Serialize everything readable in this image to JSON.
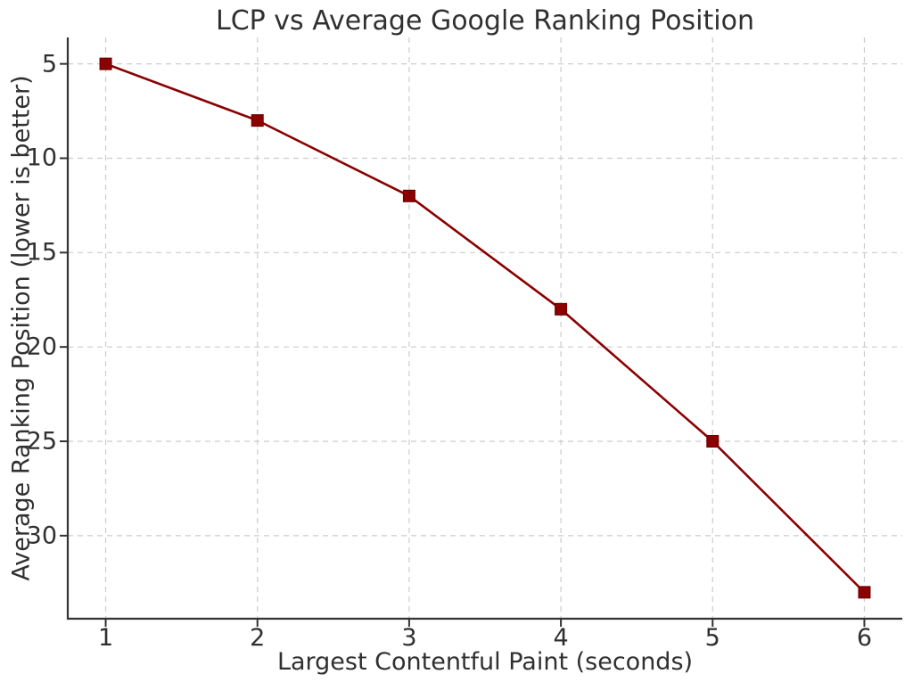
{
  "chart_data": {
    "type": "line",
    "title": "LCP vs Average Google Ranking Position",
    "xlabel": "Largest Contentful Paint (seconds)",
    "ylabel": "Average Ranking Position (lower is better)",
    "x": [
      1,
      2,
      3,
      4,
      5,
      6
    ],
    "series": [
      {
        "name": "Average Ranking Position",
        "values": [
          5,
          8,
          12,
          18,
          25,
          33
        ]
      }
    ],
    "x_ticks": [
      "1",
      "2",
      "3",
      "4",
      "5",
      "6"
    ],
    "x_tick_values": [
      1,
      2,
      3,
      4,
      5,
      6
    ],
    "y_ticks": [
      "5",
      "10",
      "15",
      "20",
      "25",
      "30"
    ],
    "y_tick_values": [
      5,
      10,
      15,
      20,
      25,
      30
    ],
    "xlim": [
      0.75,
      6.25
    ],
    "ylim": [
      3.6,
      34.4
    ],
    "y_axis_inverted": true,
    "grid": true,
    "grid_style": "dashed",
    "legend": "none",
    "marker": "square",
    "colors": {
      "line": "#8b0000",
      "marker_fill": "#8b0000",
      "marker_edge": "#6b0000",
      "grid": "#cccccc",
      "spine": "#333333",
      "text": "#303030",
      "background": "#ffffff"
    }
  }
}
